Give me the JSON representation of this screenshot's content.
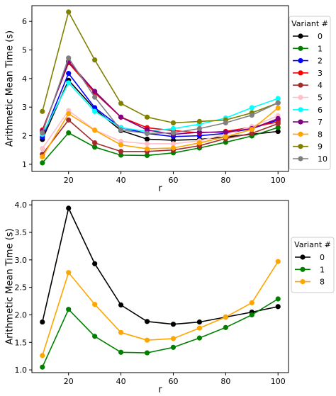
{
  "chart_data": [
    {
      "type": "line",
      "xlabel": "r",
      "ylabel": "Arithmetic Mean Time (s)",
      "x": [
        10,
        20,
        30,
        40,
        50,
        60,
        70,
        80,
        90,
        100
      ],
      "xticks": [
        20,
        40,
        60,
        80,
        100
      ],
      "yticks": [
        1,
        2,
        3,
        4,
        5,
        6
      ],
      "xlim": [
        6,
        104
      ],
      "ylim": [
        0.75,
        6.55
      ],
      "legend_title": "Variant #",
      "legend_position": "outside-right",
      "series": [
        {
          "name": "0",
          "color": "#000000",
          "values": [
            1.87,
            3.94,
            2.93,
            2.18,
            1.88,
            1.84,
            1.87,
            1.96,
            2.05,
            2.15
          ]
        },
        {
          "name": "1",
          "color": "#008000",
          "values": [
            1.05,
            2.1,
            1.6,
            1.32,
            1.31,
            1.4,
            1.57,
            1.77,
            1.99,
            2.29
          ]
        },
        {
          "name": "2",
          "color": "#0000ff",
          "values": [
            1.95,
            4.18,
            2.98,
            2.28,
            2.08,
            1.97,
            2.0,
            2.08,
            2.25,
            2.55
          ]
        },
        {
          "name": "3",
          "color": "#ff0000",
          "values": [
            2.2,
            4.55,
            3.5,
            2.65,
            2.28,
            2.18,
            2.1,
            2.15,
            2.3,
            2.48
          ]
        },
        {
          "name": "4",
          "color": "#a52a2a",
          "values": [
            1.35,
            2.55,
            1.75,
            1.45,
            1.45,
            1.5,
            1.65,
            1.9,
            2.08,
            2.42
          ]
        },
        {
          "name": "5",
          "color": "#ffc0cb",
          "values": [
            1.55,
            2.88,
            2.2,
            1.8,
            1.72,
            1.72,
            1.82,
            2.05,
            2.32,
            2.7
          ]
        },
        {
          "name": "6",
          "color": "#00ffff",
          "values": [
            2.05,
            3.85,
            2.85,
            2.28,
            2.15,
            2.25,
            2.4,
            2.62,
            2.98,
            3.3
          ]
        },
        {
          "name": "7",
          "color": "#800080",
          "values": [
            2.15,
            4.6,
            3.55,
            2.65,
            2.2,
            2.05,
            2.12,
            2.12,
            2.25,
            2.6
          ]
        },
        {
          "name": "8",
          "color": "#ffa500",
          "values": [
            1.26,
            2.77,
            2.19,
            1.68,
            1.54,
            1.57,
            1.75,
            1.96,
            2.22,
            2.97
          ]
        },
        {
          "name": "9",
          "color": "#808000",
          "values": [
            2.85,
            6.33,
            4.65,
            3.13,
            2.65,
            2.45,
            2.5,
            2.55,
            2.8,
            3.15
          ]
        },
        {
          "name": "10",
          "color": "#808080",
          "values": [
            2.1,
            4.72,
            3.35,
            2.2,
            2.08,
            2.1,
            2.25,
            2.45,
            2.72,
            3.15
          ]
        }
      ]
    },
    {
      "type": "line",
      "xlabel": "r",
      "ylabel": "Arithmetic Mean Time (s)",
      "x": [
        10,
        20,
        30,
        40,
        50,
        60,
        70,
        80,
        90,
        100
      ],
      "xticks": [
        20,
        40,
        60,
        80,
        100
      ],
      "yticks": [
        1.0,
        1.5,
        2.0,
        2.5,
        3.0,
        3.5,
        4.0
      ],
      "ytick_labels": [
        "1.0",
        "1.5",
        "2.0",
        "2.5",
        "3.0",
        "3.5",
        "4.0"
      ],
      "xlim": [
        6,
        104
      ],
      "ylim": [
        0.95,
        4.08
      ],
      "legend_title": "Variant #",
      "legend_position": "outside-right",
      "series": [
        {
          "name": "0",
          "color": "#000000",
          "values": [
            1.87,
            3.94,
            2.93,
            2.18,
            1.88,
            1.83,
            1.87,
            1.96,
            2.05,
            2.15
          ]
        },
        {
          "name": "1",
          "color": "#008000",
          "values": [
            1.05,
            2.1,
            1.61,
            1.32,
            1.31,
            1.41,
            1.58,
            1.77,
            2.0,
            2.29
          ]
        },
        {
          "name": "8",
          "color": "#ffa500",
          "values": [
            1.26,
            2.77,
            2.19,
            1.68,
            1.54,
            1.57,
            1.76,
            1.96,
            2.22,
            2.97
          ]
        }
      ]
    }
  ]
}
